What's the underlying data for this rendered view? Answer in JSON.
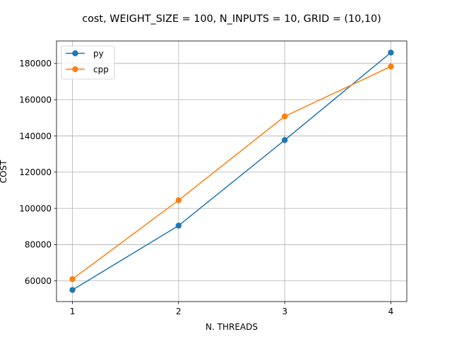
{
  "chart_data": {
    "type": "line",
    "title": "cost, WEIGHT_SIZE = 100, N_INPUTS = 10, GRID = (10,10)",
    "xlabel": "N. THREADS",
    "ylabel": "COST",
    "x": [
      1,
      2,
      3,
      4
    ],
    "x_ticks": [
      "1",
      "2",
      "3",
      "4"
    ],
    "y_ticks": [
      "60000",
      "80000",
      "100000",
      "120000",
      "140000",
      "160000",
      "180000"
    ],
    "xlim": [
      0.85,
      4.15
    ],
    "ylim": [
      48600,
      192400
    ],
    "grid": true,
    "legend_position": "top-left",
    "series": [
      {
        "name": "py",
        "color": "#1f77b4",
        "values": [
          55000,
          90500,
          137700,
          186000
        ]
      },
      {
        "name": "cpp",
        "color": "#ff7f0e",
        "values": [
          61000,
          104500,
          150800,
          178300
        ]
      }
    ]
  }
}
